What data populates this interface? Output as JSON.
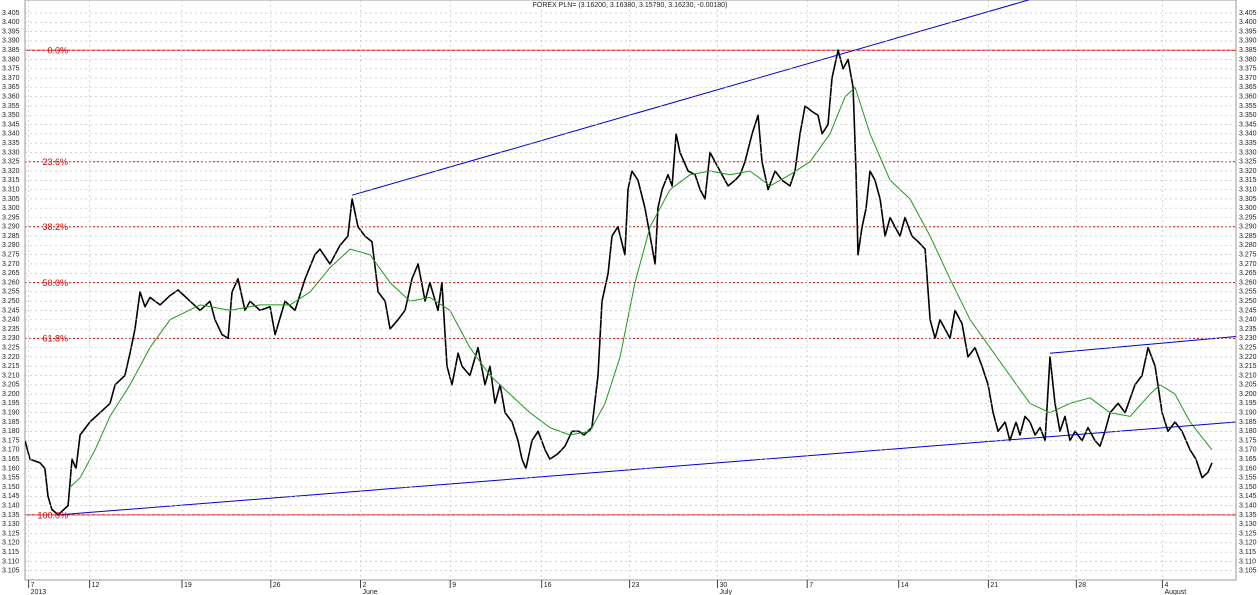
{
  "chart_data": {
    "type": "line",
    "title": "FOREX PLN= (3.16200, 3.16380, 3.15790, 3.16230, -0.00180)",
    "xlim": [
      0,
      67.5
    ],
    "ylim": [
      3.1,
      3.412
    ],
    "grid": true,
    "xticks": [
      {
        "value": 0.2,
        "label": "7"
      },
      {
        "value": 3.6,
        "label": "12"
      },
      {
        "value": 8.75,
        "label": "19"
      },
      {
        "value": 13.7,
        "label": "26"
      },
      {
        "value": 18.7,
        "label": "2"
      },
      {
        "value": 23.7,
        "label": "9"
      },
      {
        "value": 28.8,
        "label": "16"
      },
      {
        "value": 33.7,
        "label": "23"
      },
      {
        "value": 38.6,
        "label": "30"
      },
      {
        "value": 43.6,
        "label": "7"
      },
      {
        "value": 48.7,
        "label": "14"
      },
      {
        "value": 53.7,
        "label": "21"
      },
      {
        "value": 58.6,
        "label": "28"
      },
      {
        "value": 63.4,
        "label": "4"
      }
    ],
    "x_groups": [
      {
        "value": 0.2,
        "label": "2013"
      },
      {
        "value": 18.7,
        "label": "June"
      },
      {
        "value": 38.6,
        "label": "July"
      },
      {
        "value": 63.4,
        "label": "August"
      }
    ],
    "yticks": [
      3.105,
      {
        "value": 3.11,
        "label": "3.110"
      },
      3.115,
      {
        "value": 3.12,
        "label": "3.120"
      },
      3.125,
      {
        "value": 3.13,
        "label": "3.130"
      },
      3.135,
      {
        "value": 3.14,
        "label": "3.140"
      },
      3.145,
      {
        "value": 3.15,
        "label": "3.150"
      },
      3.155,
      {
        "value": 3.16,
        "label": "3.160"
      },
      3.165,
      {
        "value": 3.17,
        "label": "3.170"
      },
      3.175,
      {
        "value": 3.18,
        "label": "3.180"
      },
      3.185,
      {
        "value": 3.19,
        "label": "3.190"
      },
      3.195,
      {
        "value": 3.2,
        "label": "3.200"
      },
      3.205,
      {
        "value": 3.21,
        "label": "3.210"
      },
      3.215,
      {
        "value": 3.22,
        "label": "3.220"
      },
      3.225,
      {
        "value": 3.23,
        "label": "3.230"
      },
      3.235,
      {
        "value": 3.24,
        "label": "3.240"
      },
      3.245,
      {
        "value": 3.25,
        "label": "3.250"
      },
      3.255,
      {
        "value": 3.26,
        "label": "3.260"
      },
      3.265,
      {
        "value": 3.27,
        "label": "3.270"
      },
      3.275,
      {
        "value": 3.28,
        "label": "3.280"
      },
      3.285,
      {
        "value": 3.29,
        "label": "3.290"
      },
      3.295,
      {
        "value": 3.3,
        "label": "3.300"
      },
      3.305,
      {
        "value": 3.31,
        "label": "3.310"
      },
      3.315,
      {
        "value": 3.32,
        "label": "3.320"
      },
      3.325,
      {
        "value": 3.33,
        "label": "3.330"
      },
      3.335,
      {
        "value": 3.34,
        "label": "3.340"
      },
      3.345,
      {
        "value": 3.35,
        "label": "3.350"
      },
      3.355,
      {
        "value": 3.36,
        "label": "3.360"
      },
      3.365,
      {
        "value": 3.37,
        "label": "3.370"
      },
      3.375,
      {
        "value": 3.38,
        "label": "3.380"
      },
      3.385,
      {
        "value": 3.39,
        "label": "3.390"
      },
      3.395,
      {
        "value": 3.4,
        "label": "3.400"
      },
      3.405
    ],
    "series": [
      {
        "color": "#000000",
        "x": [
          0,
          0.28,
          0.84,
          1.11,
          1.28,
          1.5,
          1.84,
          2.06,
          2.4,
          2.62,
          2.84,
          3.07,
          3.62,
          4.18,
          4.74,
          5.02,
          5.57,
          5.85,
          6.13,
          6.41,
          6.69,
          6.97,
          7.53,
          8.08,
          8.53,
          9.2,
          9.76,
          10.31,
          10.59,
          10.98,
          11.32,
          11.54,
          11.87,
          12.26,
          12.54,
          13.1,
          13.66,
          13.94,
          14.49,
          15.05,
          15.61,
          16.16,
          16.44,
          17.0,
          17.56,
          18.0,
          18.23,
          18.56,
          18.95,
          19.34,
          19.68,
          20.07,
          20.35,
          20.79,
          21.18,
          21.57,
          21.91,
          22.3,
          22.57,
          23.02,
          23.24,
          23.52,
          23.8,
          24.14,
          24.36,
          24.8,
          25.25,
          25.64,
          25.92,
          26.2,
          26.48,
          26.76,
          27.15,
          27.48,
          27.7,
          27.92,
          28.26,
          28.6,
          28.99,
          29.26,
          29.71,
          30.1,
          30.49,
          30.88,
          31.16,
          31.6,
          31.94,
          32.16,
          32.5,
          32.72,
          33.05,
          33.44,
          33.61,
          33.83,
          34.17,
          34.56,
          34.84,
          35.12,
          35.28,
          35.51,
          35.84,
          36.07,
          36.29,
          36.51,
          36.96,
          37.35,
          37.63,
          37.9,
          38.18,
          38.46,
          38.74,
          39.19,
          39.58,
          39.86,
          40.13,
          40.53,
          40.86,
          41.08,
          41.42,
          41.81,
          42.2,
          42.64,
          42.92,
          43.2,
          43.48,
          43.87,
          44.2,
          44.43,
          44.76,
          44.98,
          45.32,
          45.6,
          45.88,
          46.16,
          46.32,
          46.43,
          46.66,
          46.88,
          47.1,
          47.38,
          47.66,
          47.94,
          48.22,
          48.49,
          48.77,
          49.05,
          49.44,
          49.78,
          50.17,
          50.45,
          50.73,
          51.0,
          51.28,
          51.56,
          51.84,
          52.23,
          52.56,
          52.95,
          53.34,
          53.68,
          53.96,
          54.24,
          54.63,
          54.9,
          55.24,
          55.46,
          55.74,
          56.02,
          56.3,
          56.58,
          56.86,
          57.13,
          57.41,
          57.69,
          57.97,
          58.25,
          58.53,
          58.92,
          59.25,
          59.64,
          59.92,
          60.2,
          60.48,
          60.93,
          61.32,
          61.87,
          62.26,
          62.6,
          62.99,
          63.38,
          63.71,
          64.1,
          64.49,
          64.94,
          65.27,
          65.61,
          65.94,
          66.16
        ],
        "values": [
          3.175,
          3.165,
          3.163,
          3.16,
          3.145,
          3.138,
          3.135,
          3.137,
          3.14,
          3.165,
          3.16,
          3.178,
          3.185,
          3.19,
          3.195,
          3.205,
          3.21,
          3.222,
          3.235,
          3.255,
          3.247,
          3.252,
          3.248,
          3.253,
          3.256,
          3.25,
          3.245,
          3.25,
          3.24,
          3.232,
          3.23,
          3.255,
          3.262,
          3.245,
          3.25,
          3.245,
          3.247,
          3.232,
          3.25,
          3.245,
          3.262,
          3.275,
          3.278,
          3.27,
          3.28,
          3.285,
          3.305,
          3.29,
          3.285,
          3.282,
          3.255,
          3.25,
          3.235,
          3.24,
          3.245,
          3.262,
          3.27,
          3.25,
          3.26,
          3.245,
          3.26,
          3.215,
          3.205,
          3.222,
          3.215,
          3.21,
          3.225,
          3.205,
          3.215,
          3.195,
          3.205,
          3.19,
          3.185,
          3.175,
          3.165,
          3.16,
          3.175,
          3.18,
          3.17,
          3.165,
          3.168,
          3.172,
          3.18,
          3.18,
          3.178,
          3.182,
          3.21,
          3.25,
          3.265,
          3.285,
          3.29,
          3.275,
          3.31,
          3.32,
          3.315,
          3.3,
          3.285,
          3.27,
          3.3,
          3.31,
          3.318,
          3.312,
          3.34,
          3.33,
          3.32,
          3.318,
          3.31,
          3.305,
          3.33,
          3.325,
          3.32,
          3.312,
          3.315,
          3.318,
          3.325,
          3.34,
          3.35,
          3.325,
          3.31,
          3.32,
          3.315,
          3.312,
          3.32,
          3.34,
          3.355,
          3.352,
          3.35,
          3.34,
          3.345,
          3.37,
          3.385,
          3.375,
          3.38,
          3.365,
          3.32,
          3.275,
          3.29,
          3.3,
          3.32,
          3.315,
          3.305,
          3.285,
          3.295,
          3.29,
          3.285,
          3.295,
          3.285,
          3.282,
          3.278,
          3.24,
          3.23,
          3.24,
          3.235,
          3.23,
          3.245,
          3.238,
          3.22,
          3.225,
          3.215,
          3.205,
          3.19,
          3.18,
          3.185,
          3.175,
          3.185,
          3.178,
          3.188,
          3.185,
          3.178,
          3.182,
          3.175,
          3.22,
          3.195,
          3.18,
          3.188,
          3.175,
          3.18,
          3.175,
          3.182,
          3.175,
          3.172,
          3.18,
          3.19,
          3.195,
          3.19,
          3.205,
          3.21,
          3.225,
          3.215,
          3.19,
          3.18,
          3.185,
          3.18,
          3.17,
          3.165,
          3.155,
          3.158,
          3.163
        ]
      },
      {
        "color": "#1a9a1a",
        "x": [
          2.51,
          3.07,
          3.9,
          4.74,
          5.85,
          6.97,
          8.08,
          9.76,
          11.43,
          13.1,
          14.77,
          15.89,
          17.0,
          18.12,
          19.23,
          20.35,
          21.46,
          22.57,
          23.69,
          24.8,
          25.92,
          27.03,
          28.15,
          29.26,
          30.38,
          31.49,
          32.33,
          33.17,
          34.0,
          34.84,
          35.95,
          37.07,
          38.18,
          39.3,
          40.41,
          41.53,
          42.64,
          43.76,
          44.87,
          45.71,
          46.27,
          47.1,
          48.22,
          49.33,
          50.45,
          51.56,
          52.68,
          53.79,
          54.9,
          56.02,
          57.13,
          58.25,
          59.36,
          60.48,
          61.6,
          62.71,
          63.27,
          64.1,
          64.94,
          66.16
        ],
        "values": [
          3.15,
          3.155,
          3.17,
          3.188,
          3.205,
          3.225,
          3.24,
          3.248,
          3.245,
          3.248,
          3.248,
          3.255,
          3.268,
          3.278,
          3.275,
          3.26,
          3.25,
          3.252,
          3.245,
          3.225,
          3.21,
          3.2,
          3.19,
          3.182,
          3.178,
          3.18,
          3.195,
          3.22,
          3.26,
          3.29,
          3.31,
          3.318,
          3.32,
          3.318,
          3.32,
          3.312,
          3.318,
          3.325,
          3.34,
          3.36,
          3.365,
          3.34,
          3.315,
          3.305,
          3.285,
          3.262,
          3.24,
          3.225,
          3.21,
          3.195,
          3.19,
          3.195,
          3.198,
          3.19,
          3.188,
          3.2,
          3.205,
          3.2,
          3.185,
          3.17
        ]
      }
    ],
    "trendline_color": "#0000cc",
    "trendlines": [
      {
        "x": [
          18.23,
          56.3
        ],
        "values": [
          3.307,
          3.413
        ]
      },
      {
        "x": [
          1.84,
          67.5
        ],
        "values": [
          3.135,
          3.185
        ]
      },
      {
        "x": [
          57.13,
          67.5
        ],
        "values": [
          3.222,
          3.231
        ]
      }
    ],
    "fib_color": "#e00000",
    "fib_levels": [
      {
        "label": "0.0%",
        "value": 3.385,
        "solid": true
      },
      {
        "label": "23.6%",
        "value": 3.325,
        "solid": false
      },
      {
        "label": "38.2%",
        "value": 3.29,
        "solid": false
      },
      {
        "label": "50.0%",
        "value": 3.26,
        "solid": false
      },
      {
        "label": "61.8%",
        "value": 3.23,
        "solid": false
      },
      {
        "label": "100.0%",
        "value": 3.135,
        "solid": true
      }
    ]
  }
}
